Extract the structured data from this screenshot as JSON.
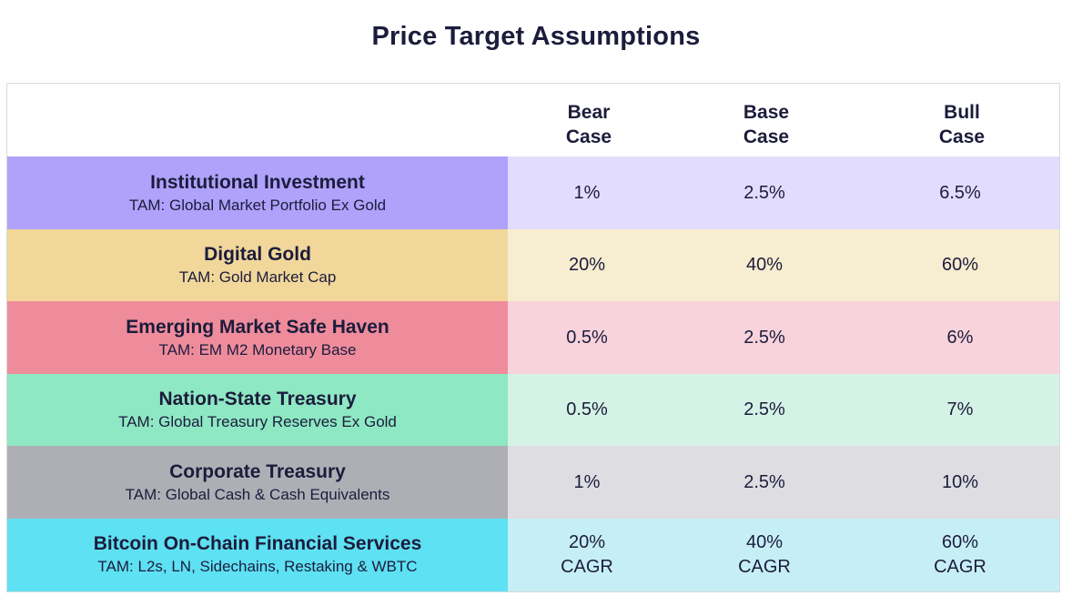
{
  "title": "Price Target Assumptions",
  "columns": [
    {
      "line1": "Bear",
      "line2": "Case"
    },
    {
      "line1": "Base",
      "line2": "Case"
    },
    {
      "line1": "Bull",
      "line2": "Case"
    }
  ],
  "rows": [
    {
      "name": "Institutional Investment",
      "tam": "TAM: Global Market Portfolio Ex Gold",
      "label_color": "#b0a2fa",
      "value_color": "#e2dcfe",
      "values": [
        {
          "v": "1%",
          "s": ""
        },
        {
          "v": "2.5%",
          "s": ""
        },
        {
          "v": "6.5%",
          "s": ""
        }
      ]
    },
    {
      "name": "Digital Gold",
      "tam": "TAM: Gold Market Cap",
      "label_color": "#f1d79a",
      "value_color": "#f7edd0",
      "values": [
        {
          "v": "20%",
          "s": ""
        },
        {
          "v": "40%",
          "s": ""
        },
        {
          "v": "60%",
          "s": ""
        }
      ]
    },
    {
      "name": "Emerging Market Safe Haven",
      "tam": "TAM: EM M2 Monetary Base",
      "label_color": "#ee8c9b",
      "value_color": "#f8d3dc",
      "values": [
        {
          "v": "0.5%",
          "s": ""
        },
        {
          "v": "2.5%",
          "s": ""
        },
        {
          "v": "6%",
          "s": ""
        }
      ]
    },
    {
      "name": "Nation-State Treasury",
      "tam": "TAM: Global Treasury Reserves Ex Gold",
      "label_color": "#8ee8c3",
      "value_color": "#d4f3e6",
      "values": [
        {
          "v": "0.5%",
          "s": ""
        },
        {
          "v": "2.5%",
          "s": ""
        },
        {
          "v": "7%",
          "s": ""
        }
      ]
    },
    {
      "name": "Corporate Treasury",
      "tam": "TAM: Global Cash & Cash Equivalents",
      "label_color": "#aeafb5",
      "value_color": "#dedee2",
      "values": [
        {
          "v": "1%",
          "s": ""
        },
        {
          "v": "2.5%",
          "s": ""
        },
        {
          "v": "10%",
          "s": ""
        }
      ]
    },
    {
      "name": "Bitcoin On-Chain Financial Services",
      "tam": "TAM: L2s, LN, Sidechains, Restaking & WBTC",
      "label_color": "#5ee1f2",
      "value_color": "#c6eef6",
      "values": [
        {
          "v": "20%",
          "s": "CAGR"
        },
        {
          "v": "40%",
          "s": "CAGR"
        },
        {
          "v": "60%",
          "s": "CAGR"
        }
      ]
    }
  ]
}
